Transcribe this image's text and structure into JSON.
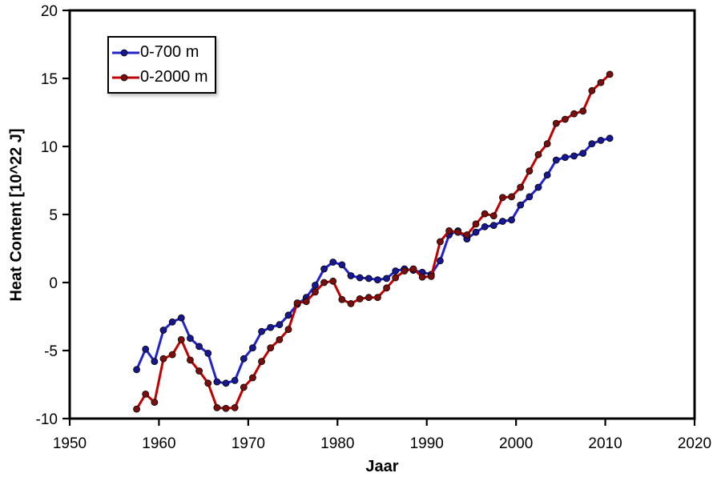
{
  "chart_data": {
    "type": "line",
    "title": "",
    "xlabel": "Jaar",
    "ylabel": "Heat Content [10^22 J]",
    "xlim": [
      1950,
      2020
    ],
    "ylim": [
      -10,
      20
    ],
    "x_ticks": [
      1950,
      1960,
      1970,
      1980,
      1990,
      2000,
      2010,
      2020
    ],
    "y_ticks": [
      -10,
      -5,
      0,
      5,
      10,
      15,
      20
    ],
    "grid": false,
    "legend_position": "top-left-inside",
    "point_offset_years": 0.5,
    "x": [
      1957,
      1958,
      1959,
      1960,
      1961,
      1962,
      1963,
      1964,
      1965,
      1966,
      1967,
      1968,
      1969,
      1970,
      1971,
      1972,
      1973,
      1974,
      1975,
      1976,
      1977,
      1978,
      1979,
      1980,
      1981,
      1982,
      1983,
      1984,
      1985,
      1986,
      1987,
      1988,
      1989,
      1990,
      1991,
      1992,
      1993,
      1994,
      1995,
      1996,
      1997,
      1998,
      1999,
      2000,
      2001,
      2002,
      2003,
      2004,
      2005,
      2006,
      2007,
      2008,
      2009,
      2010
    ],
    "series": [
      {
        "name": "0-700 m",
        "line_color": "#2323cd",
        "marker_color": "#17178f",
        "values": [
          -6.4,
          -4.9,
          -5.8,
          -3.5,
          -2.9,
          -2.6,
          -4.1,
          -4.7,
          -5.2,
          -7.3,
          -7.4,
          -7.2,
          -5.6,
          -4.8,
          -3.6,
          -3.3,
          -3.1,
          -2.4,
          -1.6,
          -1.1,
          -0.2,
          1.0,
          1.5,
          1.3,
          0.5,
          0.35,
          0.3,
          0.2,
          0.3,
          0.85,
          1.0,
          0.9,
          0.75,
          0.6,
          1.6,
          3.5,
          3.8,
          3.2,
          3.7,
          4.1,
          4.2,
          4.5,
          4.6,
          5.7,
          6.3,
          7.0,
          7.9,
          9.0,
          9.2,
          9.3,
          9.5,
          10.2,
          10.45,
          10.6
        ]
      },
      {
        "name": "0-2000 m",
        "line_color": "#c00000",
        "marker_color": "#7a0e0e",
        "values": [
          -9.3,
          -8.2,
          -8.8,
          -5.6,
          -5.3,
          -4.2,
          -5.7,
          -6.5,
          -7.4,
          -9.2,
          -9.25,
          -9.2,
          -7.7,
          -7.0,
          -5.8,
          -4.8,
          -4.2,
          -3.45,
          -1.5,
          -1.4,
          -0.7,
          0.0,
          0.1,
          -1.25,
          -1.55,
          -1.2,
          -1.1,
          -1.1,
          -0.4,
          0.35,
          0.85,
          1.0,
          0.4,
          0.45,
          3.0,
          3.8,
          3.7,
          3.5,
          4.3,
          5.05,
          4.9,
          6.25,
          6.3,
          7.0,
          8.2,
          9.4,
          10.2,
          11.7,
          12.0,
          12.4,
          12.6,
          14.1,
          14.7,
          15.3
        ]
      }
    ],
    "colors": {
      "background": "#ffffff",
      "axis": "#000000",
      "text": "#000000"
    }
  }
}
